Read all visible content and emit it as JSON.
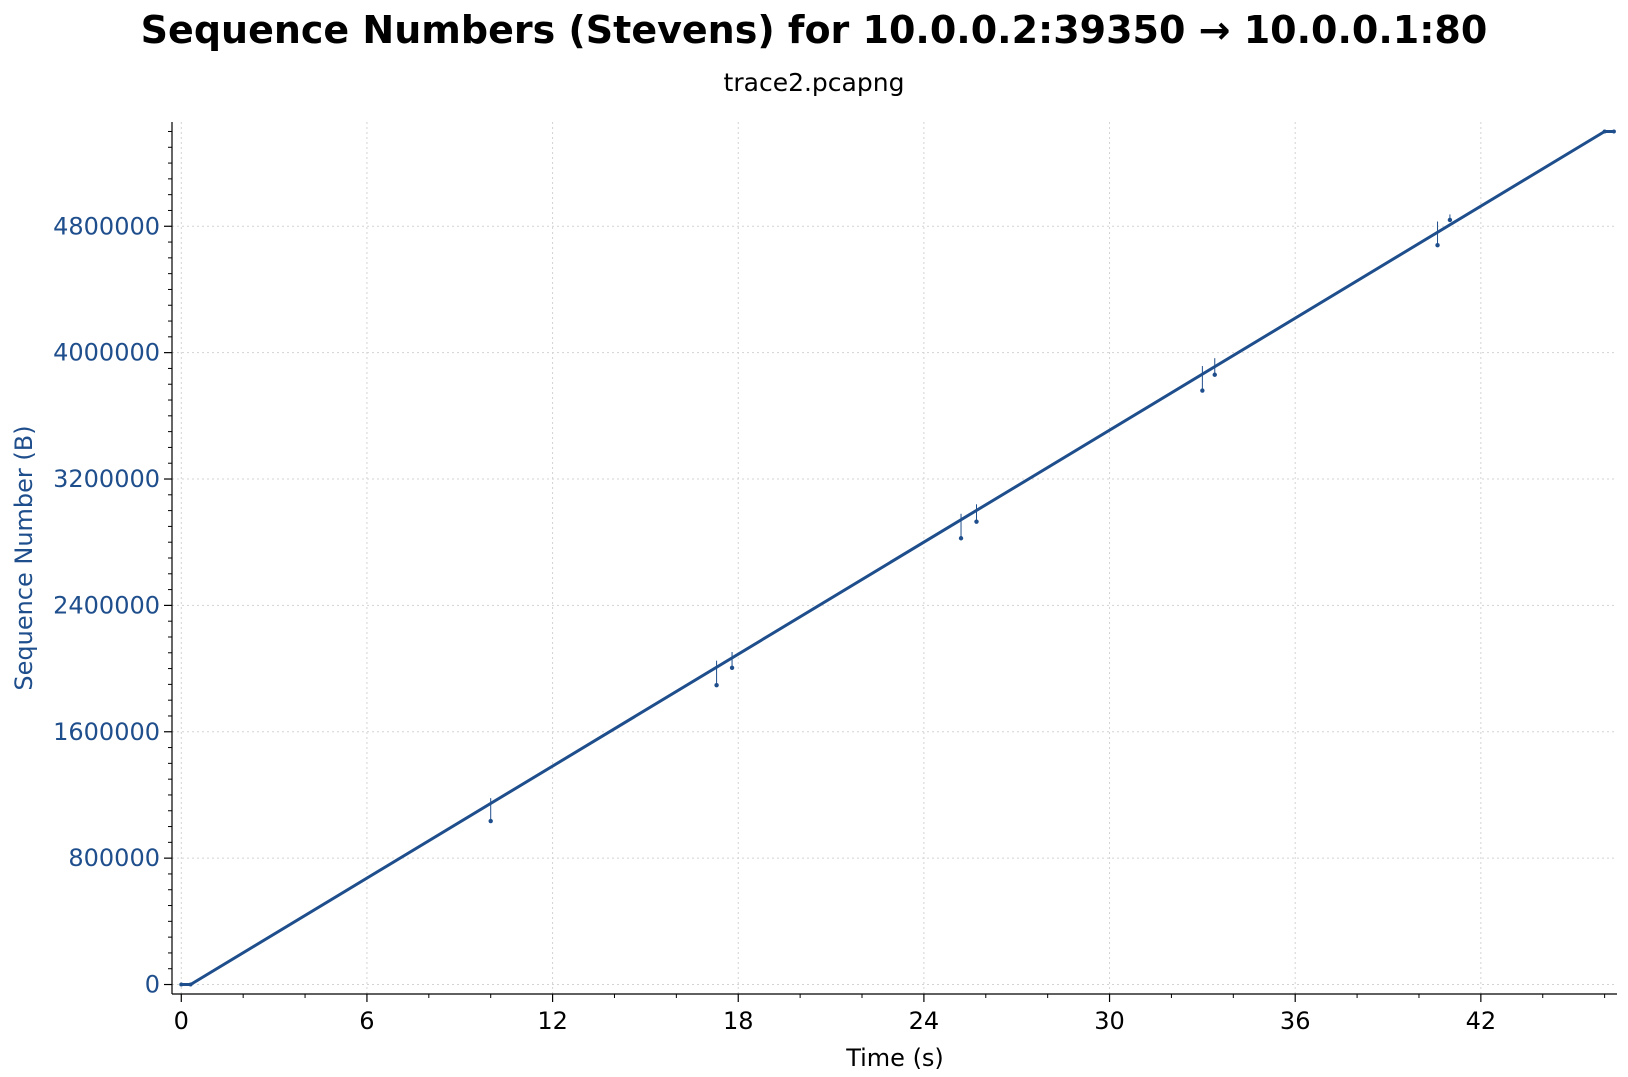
{
  "chart_data": {
    "type": "scatter",
    "title": "Sequence Numbers (Stevens) for 10.0.0.2:39350 → 10.0.0.1:80",
    "subtitle": "trace2.pcapng",
    "xlabel": "Time (s)",
    "ylabel": "Sequence Number (B)",
    "xlim": [
      -0.3,
      46.4
    ],
    "ylim": [
      -60000,
      5460000
    ],
    "xticks": [
      "0",
      "6",
      "12",
      "18",
      "24",
      "30",
      "36",
      "42"
    ],
    "xtick_values": [
      0,
      6,
      12,
      18,
      24,
      30,
      36,
      42
    ],
    "yticks": [
      "0",
      "800000",
      "1600000",
      "2400000",
      "3200000",
      "4000000",
      "4800000"
    ],
    "ytick_values": [
      0,
      800000,
      1600000,
      2400000,
      3200000,
      4000000,
      4800000
    ],
    "grid": true,
    "series": [
      {
        "points": [
          [
            0,
            0
          ],
          [
            0.3,
            0
          ],
          [
            46,
            5400000
          ],
          [
            46.3,
            5400000
          ]
        ],
        "color": "#1f4e8c"
      }
    ],
    "retransmissions": [
      {
        "x": 10.0,
        "top": 1180000,
        "bottom": 1035000
      },
      {
        "x": 17.3,
        "top": 2050000,
        "bottom": 1895000
      },
      {
        "x": 17.8,
        "top": 2105000,
        "bottom": 2005000
      },
      {
        "x": 25.2,
        "top": 2980000,
        "bottom": 2825000
      },
      {
        "x": 25.7,
        "top": 3040000,
        "bottom": 2930000
      },
      {
        "x": 33.0,
        "top": 3915000,
        "bottom": 3760000
      },
      {
        "x": 33.4,
        "top": 3965000,
        "bottom": 3860000
      },
      {
        "x": 40.6,
        "top": 4830000,
        "bottom": 4680000
      },
      {
        "x": 41.0,
        "top": 4875000,
        "bottom": 4840000
      }
    ]
  },
  "colors": {
    "series": "#1f4e8c",
    "grid": "#d3d3d3",
    "axis": "#000000"
  }
}
